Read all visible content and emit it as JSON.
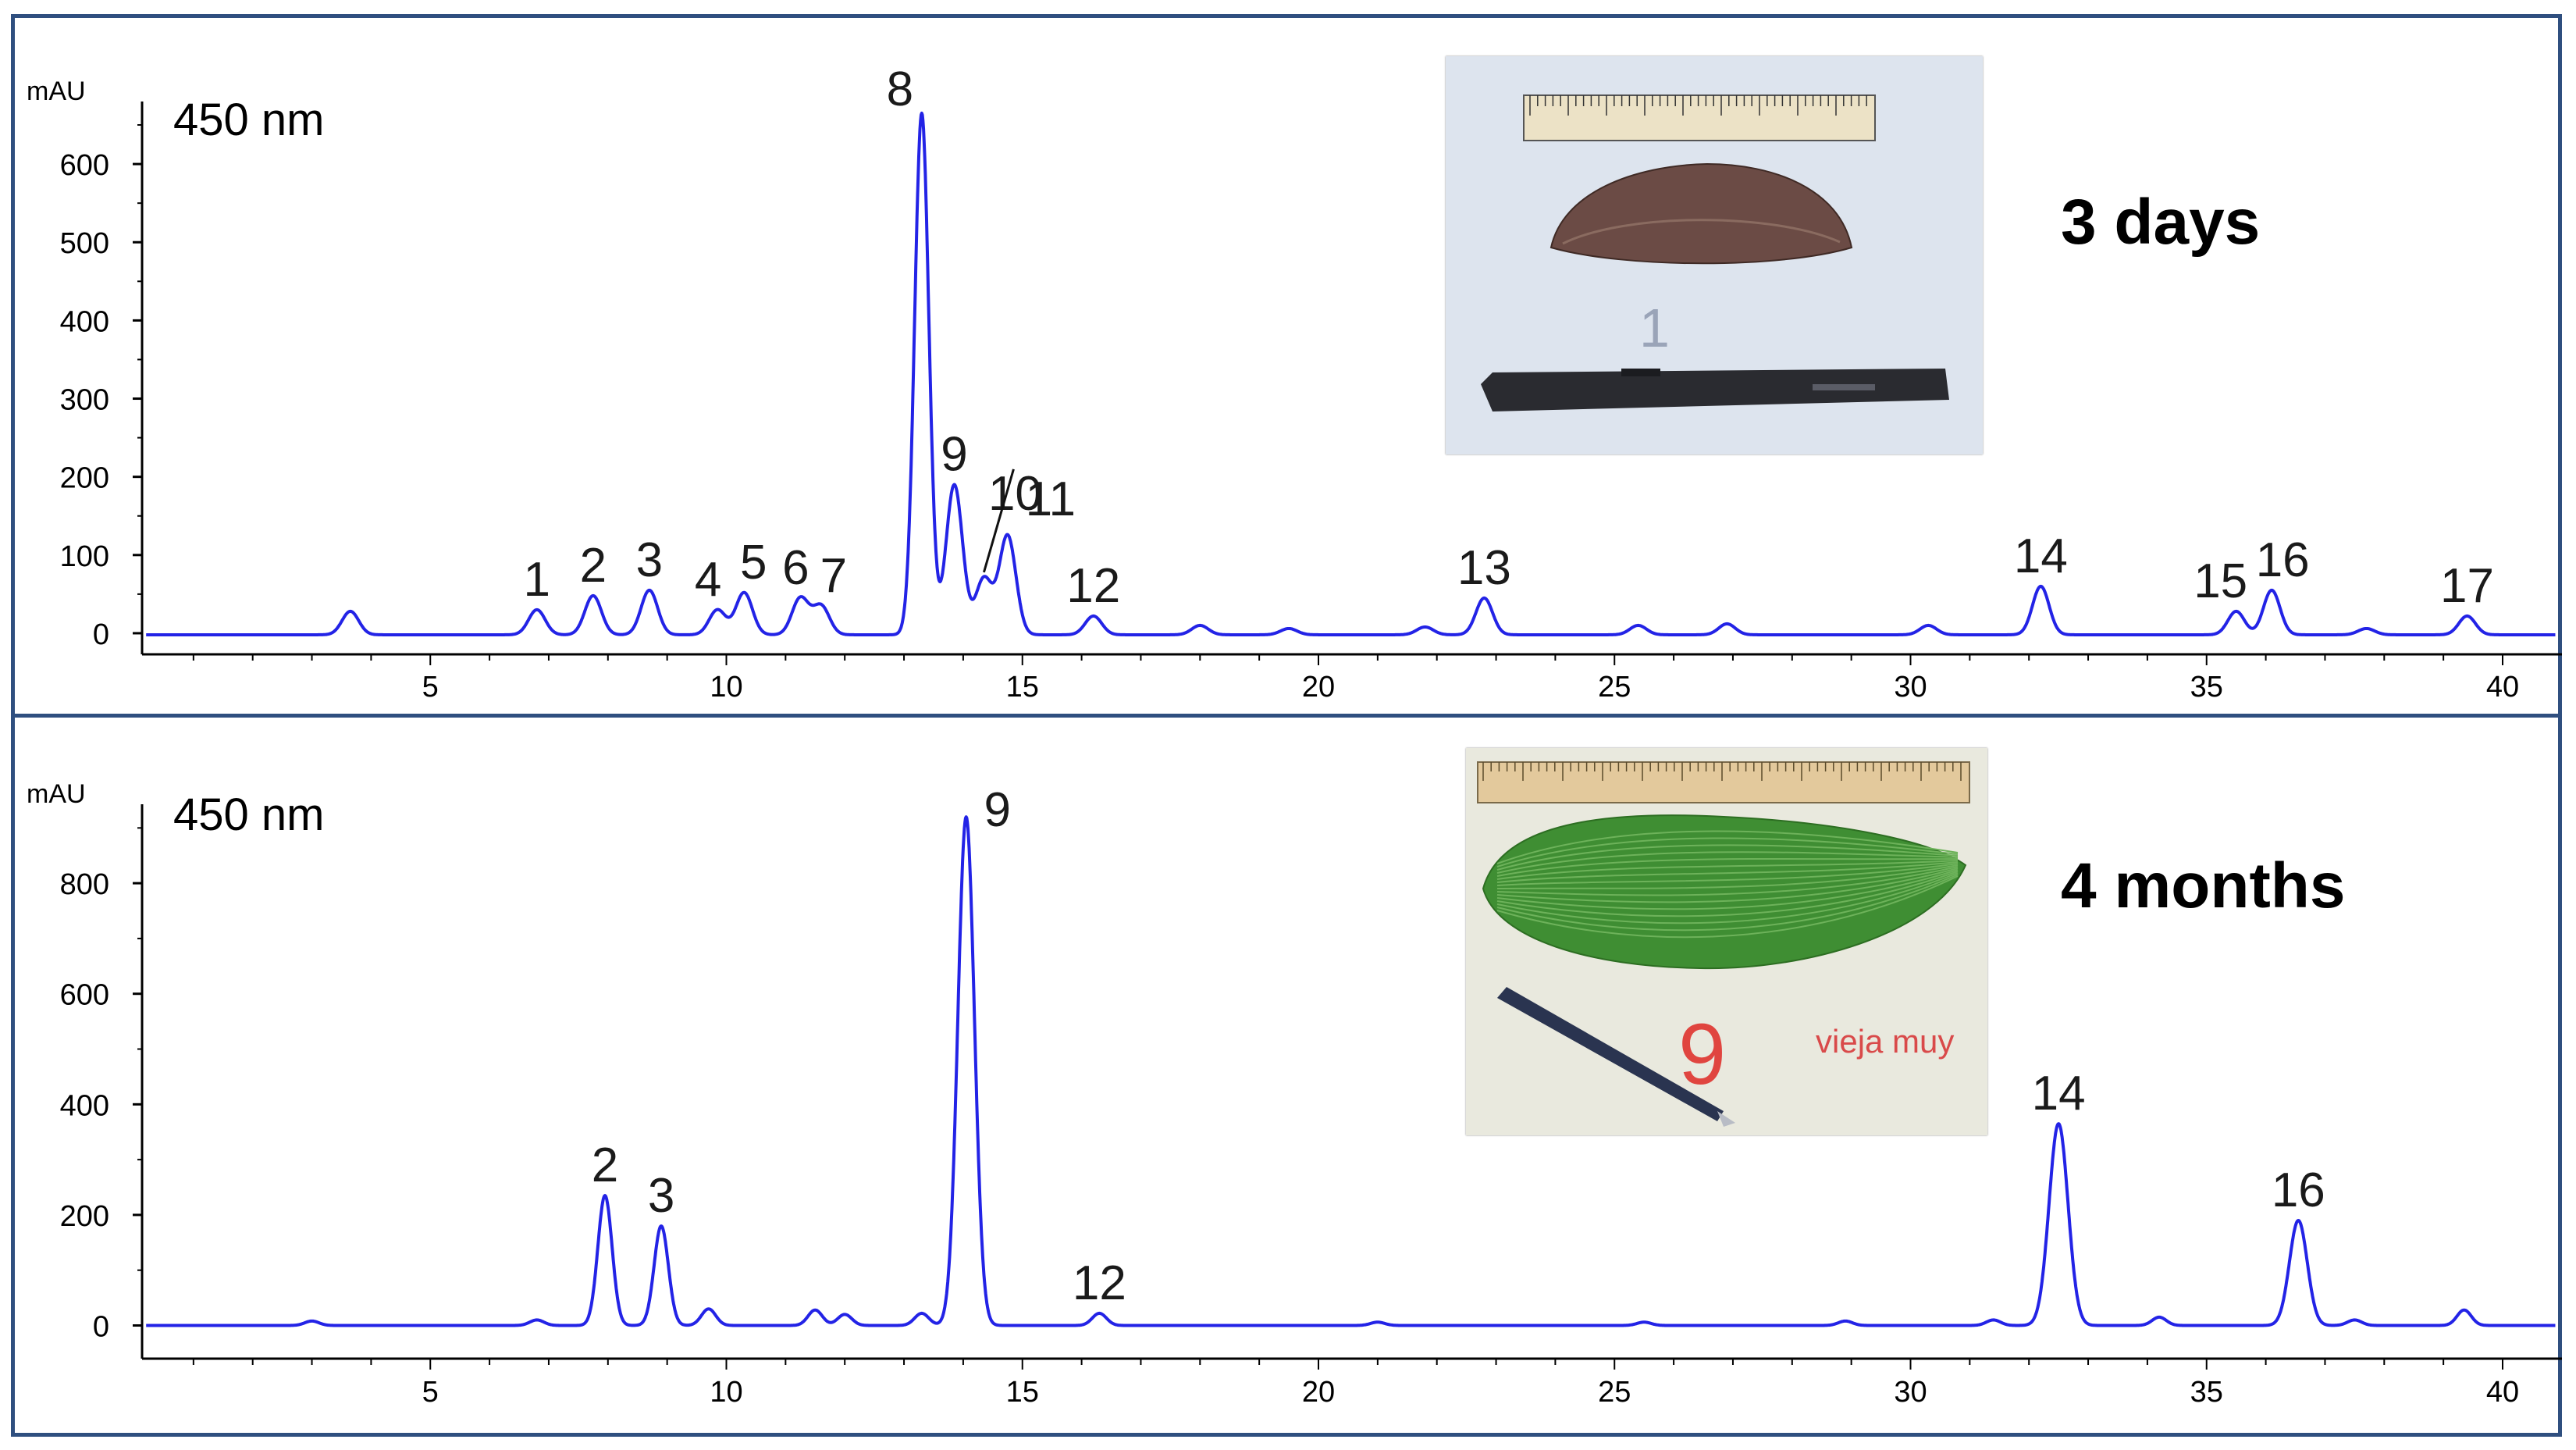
{
  "figure": {
    "panels": [
      {
        "wavelength": "450 nm",
        "stage": "3 days",
        "photo_subject": "young-leaf-3-days",
        "photo_handwriting": "1"
      },
      {
        "wavelength": "450 nm",
        "stage": "4 months",
        "photo_subject": "mature-leaf-4-months",
        "photo_handwriting": "9",
        "photo_handwriting_2": "vieja muy"
      }
    ]
  },
  "colors": {
    "trace": "#2323e6",
    "frame": "#2f4f7f",
    "axis": "#000000"
  },
  "chart_data": [
    {
      "type": "line",
      "title": "",
      "ylabel": "mAU",
      "xlabel": "",
      "annotation": "450 nm",
      "xlim": [
        0,
        41
      ],
      "ylim": [
        -25,
        660
      ],
      "xticks": [
        5,
        10,
        15,
        20,
        25,
        30,
        35,
        40
      ],
      "yticks": [
        0,
        100,
        200,
        300,
        400,
        500,
        600
      ],
      "baseline": -2,
      "peaks": [
        {
          "label": "",
          "x": 3.65,
          "y": 28
        },
        {
          "label": "1",
          "x": 6.8,
          "y": 30
        },
        {
          "label": "2",
          "x": 7.75,
          "y": 48
        },
        {
          "label": "3",
          "x": 8.7,
          "y": 55
        },
        {
          "label": "4",
          "x": 9.85,
          "y": 30
        },
        {
          "label": "5",
          "x": 10.3,
          "y": 52
        },
        {
          "label": "6",
          "x": 11.25,
          "y": 45
        },
        {
          "label": "7",
          "x": 11.6,
          "y": 35
        },
        {
          "label": "8",
          "x": 13.3,
          "y": 665
        },
        {
          "label": "9",
          "x": 13.85,
          "y": 190
        },
        {
          "label": "10",
          "x": 14.35,
          "y": 70
        },
        {
          "label": "11",
          "x": 14.75,
          "y": 125
        },
        {
          "label": "12",
          "x": 16.2,
          "y": 22
        },
        {
          "label": "",
          "x": 18.0,
          "y": 10
        },
        {
          "label": "",
          "x": 19.5,
          "y": 6
        },
        {
          "label": "",
          "x": 21.8,
          "y": 8
        },
        {
          "label": "13",
          "x": 22.8,
          "y": 45
        },
        {
          "label": "",
          "x": 25.4,
          "y": 10
        },
        {
          "label": "",
          "x": 26.9,
          "y": 12
        },
        {
          "label": "",
          "x": 30.3,
          "y": 10
        },
        {
          "label": "14",
          "x": 32.2,
          "y": 60
        },
        {
          "label": "15",
          "x": 35.5,
          "y": 28
        },
        {
          "label": "16",
          "x": 36.1,
          "y": 55
        },
        {
          "label": "",
          "x": 37.7,
          "y": 6
        },
        {
          "label": "17",
          "x": 39.4,
          "y": 22
        }
      ]
    },
    {
      "type": "line",
      "title": "",
      "ylabel": "mAU",
      "xlabel": "",
      "annotation": "450 nm",
      "xlim": [
        0,
        41
      ],
      "ylim": [
        -60,
        940
      ],
      "xticks": [
        5,
        10,
        15,
        20,
        25,
        30,
        35,
        40
      ],
      "yticks": [
        0,
        200,
        400,
        600,
        800
      ],
      "baseline": 0,
      "peaks": [
        {
          "label": "",
          "x": 3.0,
          "y": 8
        },
        {
          "label": "",
          "x": 6.8,
          "y": 10
        },
        {
          "label": "2",
          "x": 7.95,
          "y": 235
        },
        {
          "label": "3",
          "x": 8.9,
          "y": 180
        },
        {
          "label": "",
          "x": 9.7,
          "y": 30
        },
        {
          "label": "",
          "x": 11.5,
          "y": 28
        },
        {
          "label": "",
          "x": 12.0,
          "y": 20
        },
        {
          "label": "",
          "x": 13.3,
          "y": 22
        },
        {
          "label": "9",
          "x": 14.05,
          "y": 920
        },
        {
          "label": "12",
          "x": 16.3,
          "y": 22
        },
        {
          "label": "",
          "x": 21.0,
          "y": 6
        },
        {
          "label": "",
          "x": 25.5,
          "y": 6
        },
        {
          "label": "",
          "x": 28.9,
          "y": 8
        },
        {
          "label": "",
          "x": 31.4,
          "y": 10
        },
        {
          "label": "14",
          "x": 32.5,
          "y": 365
        },
        {
          "label": "",
          "x": 34.2,
          "y": 15
        },
        {
          "label": "16",
          "x": 36.55,
          "y": 190
        },
        {
          "label": "",
          "x": 37.5,
          "y": 10
        },
        {
          "label": "",
          "x": 39.35,
          "y": 28
        }
      ]
    }
  ]
}
